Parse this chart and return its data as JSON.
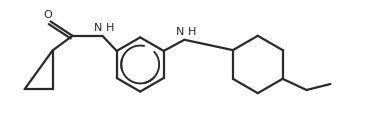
{
  "background_color": "#ffffff",
  "line_color": "#2a2a2a",
  "line_width": 1.6,
  "figsize": [
    3.92,
    1.17
  ],
  "dpi": 100,
  "xlim": [
    0,
    9.8
  ],
  "ylim": [
    0,
    2.7
  ]
}
